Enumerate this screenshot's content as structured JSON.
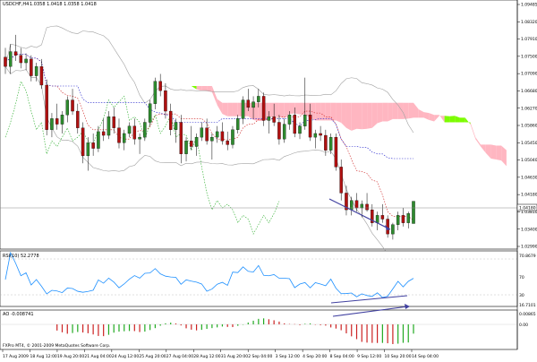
{
  "window": {
    "title": "USDCHF,H4",
    "ohlc": "1.0358 1.0418 1.0358 1.0418",
    "copyright": "FXPro MT4, © 2001-2009 MetaQuotes Software Corp."
  },
  "indicators": {
    "rsi": {
      "label": "RSI(10) 52.2778",
      "levels": [
        "70",
        "30"
      ],
      "level_labels": [
        "70.8679",
        "16.7101"
      ]
    },
    "ao": {
      "label": "AO -0.008741",
      "scale_labels": [
        "0.00865",
        "0.00"
      ]
    }
  },
  "price_axis": {
    "labels": [
      "1.09485",
      "1.08320",
      "1.07910",
      "1.07500",
      "1.07090",
      "1.06680",
      "1.06270",
      "1.05860",
      "1.05450",
      "1.05040",
      "1.04630",
      "1.04180",
      "1.03810",
      "1.03400",
      "1.02990"
    ],
    "current": "1.04180"
  },
  "time_axis": {
    "labels": [
      "17 Aug 2009",
      "18 Aug 12:00",
      "19 Aug 20:00",
      "21 Aug 04:00",
      "24 Aug 12:00",
      "25 Aug 20:00",
      "27 Aug 04:00",
      "28 Aug 12:00",
      "31 Aug 20:00",
      "2 Sep 04:00",
      "3 Sep 12:00",
      "4 Sep 20:00",
      "8 Sep 04:00",
      "9 Sep 12:00",
      "10 Sep 20:00",
      "14 Sep 04:00"
    ]
  },
  "colors": {
    "bull": "#2e8b2e",
    "bear": "#b01010",
    "cloud_bull": "#7cfc00",
    "cloud_bear": "#ffb6c1",
    "rsi_line": "#1e90ff",
    "bands": "#a0a0a0",
    "tenkan": "#cc2222",
    "kijun": "#2222cc",
    "chikou": "#22aa22",
    "trendline": "#4040a0",
    "ao_up": "#22aa22",
    "ao_down": "#cc2222"
  },
  "chart_data": {
    "type": "candlestick",
    "symbol": "USDCHF",
    "timeframe": "H4",
    "ylim": [
      1.0299,
      1.0949
    ],
    "candles_ohlc": [
      [
        1.0805,
        1.083,
        1.076,
        1.078
      ],
      [
        1.078,
        1.084,
        1.076,
        1.082
      ],
      [
        1.082,
        1.0865,
        1.0795,
        1.081
      ],
      [
        1.081,
        1.083,
        1.0775,
        1.079
      ],
      [
        1.079,
        1.0815,
        1.077,
        1.08
      ],
      [
        1.08,
        1.081,
        1.074,
        1.0755
      ],
      [
        1.0755,
        1.079,
        1.074,
        1.078
      ],
      [
        1.078,
        1.08,
        1.072,
        1.073
      ],
      [
        1.073,
        1.0745,
        1.0595,
        1.061
      ],
      [
        1.061,
        1.0655,
        1.059,
        1.064
      ],
      [
        1.064,
        1.068,
        1.061,
        1.0625
      ],
      [
        1.0625,
        1.066,
        1.06,
        1.065
      ],
      [
        1.065,
        1.07,
        1.063,
        1.069
      ],
      [
        1.069,
        1.072,
        1.065,
        1.066
      ],
      [
        1.066,
        1.068,
        1.06,
        1.0615
      ],
      [
        1.0615,
        1.063,
        1.052,
        1.054
      ],
      [
        1.054,
        1.059,
        1.05,
        1.0575
      ],
      [
        1.0575,
        1.06,
        1.054,
        1.056
      ],
      [
        1.056,
        1.062,
        1.055,
        1.0605
      ],
      [
        1.0605,
        1.064,
        1.058,
        1.0595
      ],
      [
        1.0595,
        1.066,
        1.0585,
        1.0645
      ],
      [
        1.0645,
        1.067,
        1.06,
        1.0615
      ],
      [
        1.0615,
        1.064,
        1.056,
        1.0575
      ],
      [
        1.0575,
        1.061,
        1.0555,
        1.06
      ],
      [
        1.06,
        1.063,
        1.059,
        1.062
      ],
      [
        1.062,
        1.064,
        1.057,
        1.0585
      ],
      [
        1.0585,
        1.06,
        1.0545,
        1.059
      ],
      [
        1.059,
        1.064,
        1.058,
        1.063
      ],
      [
        1.063,
        1.069,
        1.062,
        1.068
      ],
      [
        1.068,
        1.075,
        1.0665,
        1.074
      ],
      [
        1.074,
        1.076,
        1.07,
        1.0715
      ],
      [
        1.0715,
        1.0735,
        1.064,
        1.066
      ],
      [
        1.066,
        1.068,
        1.0595,
        1.061
      ],
      [
        1.061,
        1.064,
        1.0575,
        1.063
      ],
      [
        1.063,
        1.065,
        1.052,
        1.0545
      ],
      [
        1.0545,
        1.059,
        1.0525,
        1.058
      ],
      [
        1.058,
        1.062,
        1.0555,
        1.0565
      ],
      [
        1.0565,
        1.06,
        1.054,
        1.059
      ],
      [
        1.059,
        1.063,
        1.058,
        1.0615
      ],
      [
        1.0615,
        1.064,
        1.057,
        1.058
      ],
      [
        1.058,
        1.06,
        1.053,
        1.059
      ],
      [
        1.059,
        1.062,
        1.0575,
        1.0605
      ],
      [
        1.0605,
        1.063,
        1.057,
        1.058
      ],
      [
        1.058,
        1.0605,
        1.0555,
        1.057
      ],
      [
        1.057,
        1.062,
        1.056,
        1.061
      ],
      [
        1.061,
        1.065,
        1.06,
        1.064
      ],
      [
        1.064,
        1.07,
        1.0625,
        1.069
      ],
      [
        1.069,
        1.072,
        1.066,
        1.067
      ],
      [
        1.067,
        1.07,
        1.064,
        1.0685
      ],
      [
        1.0685,
        1.072,
        1.067,
        1.07
      ],
      [
        1.07,
        1.071,
        1.062,
        1.0635
      ],
      [
        1.0635,
        1.066,
        1.06,
        1.0645
      ],
      [
        1.0645,
        1.068,
        1.062,
        1.063
      ],
      [
        1.063,
        1.065,
        1.057,
        1.0585
      ],
      [
        1.0585,
        1.064,
        1.0575,
        1.0625
      ],
      [
        1.0625,
        1.066,
        1.061,
        1.065
      ],
      [
        1.065,
        1.067,
        1.059,
        1.06
      ],
      [
        1.06,
        1.063,
        1.0585,
        1.062
      ],
      [
        1.062,
        1.075,
        1.061,
        1.065
      ],
      [
        1.065,
        1.068,
        1.058,
        1.059
      ],
      [
        1.059,
        1.061,
        1.056,
        1.06
      ],
      [
        1.06,
        1.062,
        1.058,
        1.0595
      ],
      [
        1.0595,
        1.061,
        1.054,
        1.0555
      ],
      [
        1.0555,
        1.06,
        1.0545,
        1.059
      ],
      [
        1.059,
        1.06,
        1.05,
        1.051
      ],
      [
        1.051,
        1.053,
        1.042,
        1.044
      ],
      [
        1.044,
        1.046,
        1.038,
        1.0395
      ],
      [
        1.0395,
        1.043,
        1.038,
        1.042
      ],
      [
        1.042,
        1.044,
        1.039,
        1.04
      ],
      [
        1.04,
        1.042,
        1.0375,
        1.041
      ],
      [
        1.041,
        1.044,
        1.039,
        1.0395
      ],
      [
        1.0395,
        1.041,
        1.035,
        1.036
      ],
      [
        1.036,
        1.039,
        1.034,
        1.038
      ],
      [
        1.038,
        1.041,
        1.036,
        1.037
      ],
      [
        1.037,
        1.038,
        1.032,
        1.033
      ],
      [
        1.033,
        1.036,
        1.0315,
        1.0355
      ],
      [
        1.0355,
        1.039,
        1.034,
        1.038
      ],
      [
        1.038,
        1.04,
        1.035,
        1.036
      ],
      [
        1.036,
        1.039,
        1.0345,
        1.0385
      ],
      [
        1.0358,
        1.0418,
        1.0358,
        1.0418
      ]
    ],
    "last_price": 1.0418,
    "rsi_period": 10,
    "rsi_last": 52.2778,
    "ao_last": -0.008741
  }
}
